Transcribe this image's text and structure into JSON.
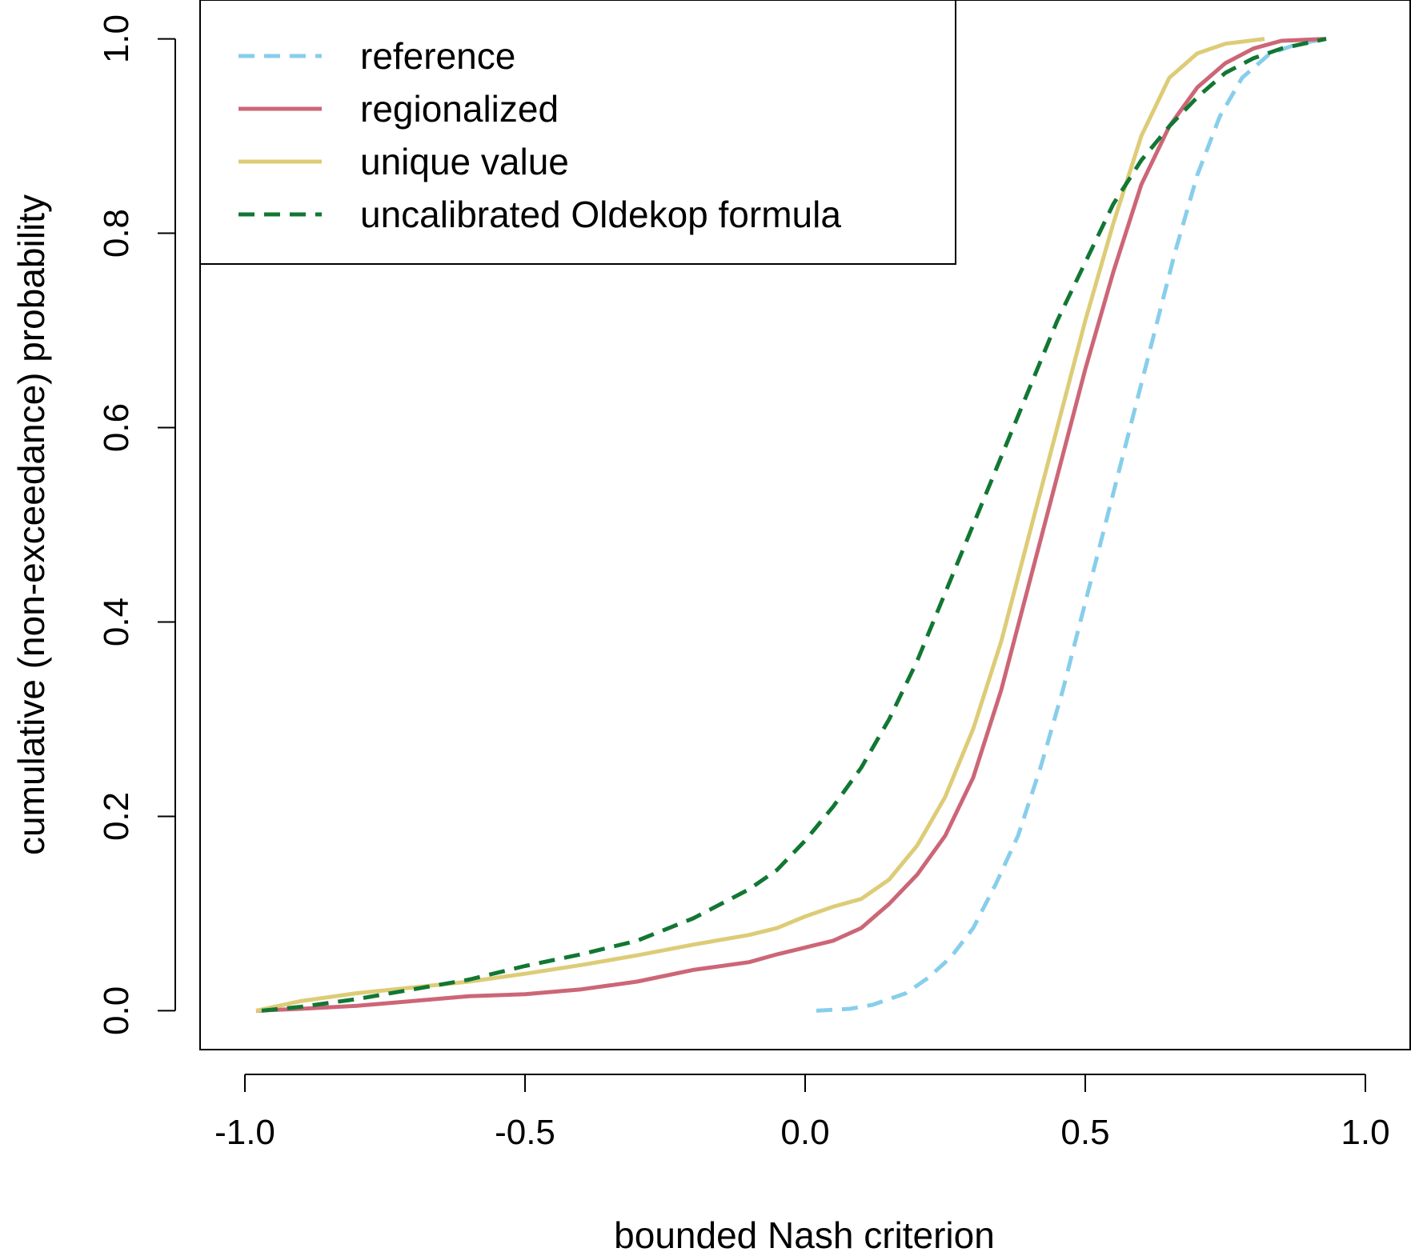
{
  "chart_data": {
    "type": "line",
    "title": "",
    "xlabel": "bounded Nash criterion",
    "ylabel": "cumulative (non-exceedance) probability",
    "xlim": [
      -1.08,
      1.08
    ],
    "ylim": [
      -0.04,
      1.04
    ],
    "x_ticks": [
      -1.0,
      -0.5,
      0.0,
      0.5,
      1.0
    ],
    "x_tick_labels": [
      "-1.0",
      "-0.5",
      "0.0",
      "0.5",
      "1.0"
    ],
    "y_ticks": [
      0.0,
      0.2,
      0.4,
      0.6,
      0.8,
      1.0
    ],
    "y_tick_labels": [
      "0.0",
      "0.2",
      "0.4",
      "0.6",
      "0.8",
      "1.0"
    ],
    "grid": false,
    "legend": {
      "position": "top-left",
      "framed": true
    },
    "series": [
      {
        "name": "reference",
        "color": "#87ceeb",
        "dash": "dashed",
        "points": [
          [
            0.02,
            0.0
          ],
          [
            0.08,
            0.002
          ],
          [
            0.12,
            0.006
          ],
          [
            0.18,
            0.018
          ],
          [
            0.22,
            0.034
          ],
          [
            0.26,
            0.055
          ],
          [
            0.3,
            0.085
          ],
          [
            0.34,
            0.13
          ],
          [
            0.38,
            0.18
          ],
          [
            0.42,
            0.25
          ],
          [
            0.46,
            0.33
          ],
          [
            0.5,
            0.42
          ],
          [
            0.54,
            0.51
          ],
          [
            0.58,
            0.6
          ],
          [
            0.62,
            0.69
          ],
          [
            0.66,
            0.78
          ],
          [
            0.7,
            0.86
          ],
          [
            0.74,
            0.92
          ],
          [
            0.78,
            0.96
          ],
          [
            0.83,
            0.985
          ],
          [
            0.88,
            0.995
          ],
          [
            0.93,
            1.0
          ]
        ]
      },
      {
        "name": "regionalized",
        "color": "#cc6677",
        "dash": "solid",
        "points": [
          [
            -0.98,
            0.0
          ],
          [
            -0.9,
            0.002
          ],
          [
            -0.8,
            0.005
          ],
          [
            -0.7,
            0.01
          ],
          [
            -0.6,
            0.015
          ],
          [
            -0.5,
            0.017
          ],
          [
            -0.4,
            0.022
          ],
          [
            -0.3,
            0.03
          ],
          [
            -0.2,
            0.042
          ],
          [
            -0.1,
            0.05
          ],
          [
            -0.05,
            0.058
          ],
          [
            0.0,
            0.065
          ],
          [
            0.05,
            0.072
          ],
          [
            0.1,
            0.085
          ],
          [
            0.15,
            0.11
          ],
          [
            0.2,
            0.14
          ],
          [
            0.25,
            0.18
          ],
          [
            0.3,
            0.24
          ],
          [
            0.35,
            0.33
          ],
          [
            0.4,
            0.44
          ],
          [
            0.45,
            0.55
          ],
          [
            0.5,
            0.66
          ],
          [
            0.55,
            0.76
          ],
          [
            0.6,
            0.85
          ],
          [
            0.65,
            0.91
          ],
          [
            0.7,
            0.95
          ],
          [
            0.75,
            0.975
          ],
          [
            0.8,
            0.99
          ],
          [
            0.85,
            0.998
          ],
          [
            0.93,
            1.0
          ]
        ]
      },
      {
        "name": "unique value",
        "color": "#ddcc77",
        "dash": "solid",
        "points": [
          [
            -0.98,
            0.0
          ],
          [
            -0.9,
            0.01
          ],
          [
            -0.8,
            0.018
          ],
          [
            -0.7,
            0.024
          ],
          [
            -0.6,
            0.03
          ],
          [
            -0.5,
            0.038
          ],
          [
            -0.4,
            0.047
          ],
          [
            -0.3,
            0.057
          ],
          [
            -0.2,
            0.068
          ],
          [
            -0.1,
            0.078
          ],
          [
            -0.05,
            0.085
          ],
          [
            0.0,
            0.097
          ],
          [
            0.05,
            0.107
          ],
          [
            0.1,
            0.115
          ],
          [
            0.15,
            0.135
          ],
          [
            0.2,
            0.17
          ],
          [
            0.25,
            0.22
          ],
          [
            0.3,
            0.29
          ],
          [
            0.35,
            0.38
          ],
          [
            0.4,
            0.49
          ],
          [
            0.45,
            0.6
          ],
          [
            0.5,
            0.71
          ],
          [
            0.55,
            0.81
          ],
          [
            0.6,
            0.9
          ],
          [
            0.65,
            0.96
          ],
          [
            0.7,
            0.985
          ],
          [
            0.75,
            0.995
          ],
          [
            0.82,
            1.0
          ]
        ]
      },
      {
        "name": "uncalibrated Oldekop formula",
        "color": "#117733",
        "dash": "dashed",
        "points": [
          [
            -0.97,
            0.0
          ],
          [
            -0.9,
            0.004
          ],
          [
            -0.8,
            0.012
          ],
          [
            -0.7,
            0.022
          ],
          [
            -0.6,
            0.032
          ],
          [
            -0.5,
            0.046
          ],
          [
            -0.4,
            0.058
          ],
          [
            -0.3,
            0.072
          ],
          [
            -0.2,
            0.095
          ],
          [
            -0.1,
            0.125
          ],
          [
            -0.05,
            0.145
          ],
          [
            0.0,
            0.175
          ],
          [
            0.05,
            0.21
          ],
          [
            0.1,
            0.25
          ],
          [
            0.15,
            0.3
          ],
          [
            0.2,
            0.36
          ],
          [
            0.25,
            0.43
          ],
          [
            0.3,
            0.5
          ],
          [
            0.35,
            0.57
          ],
          [
            0.4,
            0.64
          ],
          [
            0.45,
            0.71
          ],
          [
            0.5,
            0.77
          ],
          [
            0.55,
            0.83
          ],
          [
            0.6,
            0.875
          ],
          [
            0.65,
            0.91
          ],
          [
            0.7,
            0.94
          ],
          [
            0.75,
            0.965
          ],
          [
            0.8,
            0.98
          ],
          [
            0.85,
            0.99
          ],
          [
            0.93,
            1.0
          ]
        ]
      }
    ]
  }
}
